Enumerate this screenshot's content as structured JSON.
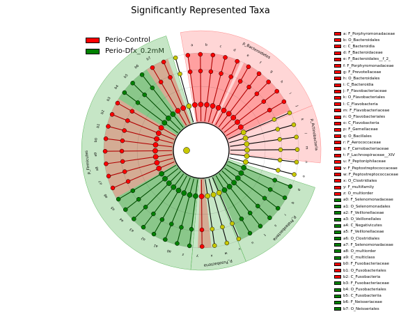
{
  "title": "Significantly Represented Taxa",
  "colors": {
    "control": "#ff0000",
    "dfx": "#008000",
    "control_shade": "#ff8a8a",
    "dfx_shade": "#5cb85c",
    "neutral_node": "#c8c800",
    "line": "#000000"
  },
  "legend": [
    {
      "label": "Perio-Control",
      "color": "#ff0000"
    },
    {
      "label": "Perio-Dfx_0.2mM",
      "color": "#008000"
    }
  ],
  "key": [
    {
      "label": "a: F_Porphyromonadaceae",
      "group": "control"
    },
    {
      "label": "b: O_Bacteroidales",
      "group": "control"
    },
    {
      "label": "c: C_Bacteroidia",
      "group": "control"
    },
    {
      "label": "d: F_Bacteroidaceae",
      "group": "control"
    },
    {
      "label": "e: F_Bacteroidales__f_2_",
      "group": "control"
    },
    {
      "label": "f: F_Porphyromonadaceae",
      "group": "control"
    },
    {
      "label": "g: F_Prevotellaceae",
      "group": "control"
    },
    {
      "label": "h: O_Bacteroidales",
      "group": "control"
    },
    {
      "label": "i: C_Bacteroidia",
      "group": "control"
    },
    {
      "label": "j: F_Flavobacteriaceae",
      "group": "control"
    },
    {
      "label": "k: O_Flavobacteriales",
      "group": "control"
    },
    {
      "label": "l: C_Flavobacteria",
      "group": "control"
    },
    {
      "label": "m: F_Flavobacteriaceae",
      "group": "control"
    },
    {
      "label": "n: O_Flavobacteriales",
      "group": "control"
    },
    {
      "label": "o: C_Flavobacteria",
      "group": "control"
    },
    {
      "label": "p: F_Gemellaceae",
      "group": "control"
    },
    {
      "label": "q: O_Bacillales",
      "group": "control"
    },
    {
      "label": "r: F_Aerococcaceae",
      "group": "control"
    },
    {
      "label": "s: F_Carnobacteriaceae",
      "group": "control"
    },
    {
      "label": "t: F_Lachnospiraceae__XIV",
      "group": "control"
    },
    {
      "label": "u: F_Peptoniphilaceae",
      "group": "control"
    },
    {
      "label": "v: F_Peptostreptococcaceae",
      "group": "control"
    },
    {
      "label": "w: F_Peptostreptococcaceae",
      "group": "control"
    },
    {
      "label": "x: O_Clostridiales",
      "group": "control"
    },
    {
      "label": "y: F_multifamily",
      "group": "control"
    },
    {
      "label": "z: O_multiorder",
      "group": "control"
    },
    {
      "label": "a0: F_Selenomonadaceae",
      "group": "dfx"
    },
    {
      "label": "a1: O_Selenomonadales",
      "group": "dfx"
    },
    {
      "label": "a2: F_Veillonellaceae",
      "group": "dfx"
    },
    {
      "label": "a3: O_Veillonellales",
      "group": "dfx"
    },
    {
      "label": "a4: C_Negativicutes",
      "group": "dfx"
    },
    {
      "label": "a5: F_Veillonellaceae",
      "group": "dfx"
    },
    {
      "label": "a6: O_Clostridiales",
      "group": "dfx"
    },
    {
      "label": "a7: F_Selenomonadaceae",
      "group": "dfx"
    },
    {
      "label": "a8: O_multiorder",
      "group": "dfx"
    },
    {
      "label": "a9: C_multiclass",
      "group": "dfx"
    },
    {
      "label": "b0: F_Fusobacteriaceae",
      "group": "control"
    },
    {
      "label": "b1: O_Fusobacteriales",
      "group": "control"
    },
    {
      "label": "b2: C_Fusobacteria",
      "group": "control"
    },
    {
      "label": "b3: F_Fusobacteriaceae",
      "group": "dfx"
    },
    {
      "label": "b4: O_Fusobacteriales",
      "group": "dfx"
    },
    {
      "label": "b5: C_Fusobacteriia",
      "group": "dfx"
    },
    {
      "label": "b6: F_Neisseriaceae",
      "group": "dfx"
    },
    {
      "label": "b7: O_Neisseriales",
      "group": "dfx"
    }
  ],
  "chart_data": {
    "type": "cladogram",
    "title": "Significantly Represented Taxa",
    "legend_placement": "top-left",
    "clades": [
      {
        "name": "p_Bacteroidetes",
        "enriched_in": "Perio-Control",
        "start_deg": -100,
        "end_deg": -22
      },
      {
        "name": "p_Actinobacteria",
        "enriched_in": "Perio-Control",
        "start_deg": -22,
        "end_deg": 6
      },
      {
        "name": "p_Proteobacteria",
        "enriched_in": "Perio-Dfx_0.2mM",
        "start_deg": 18,
        "end_deg": 68
      },
      {
        "name": "p_Fusobacteria",
        "enriched_in": "Perio-Dfx_0.2mM",
        "start_deg": 68,
        "end_deg": 95
      },
      {
        "name": "p_Firmicutes",
        "enriched_in": "Perio-Dfx_0.2mM",
        "start_deg": 95,
        "end_deg": 253
      }
    ],
    "control_sectors": [
      {
        "start_deg": -98,
        "end_deg": -66
      },
      {
        "start_deg": -64,
        "end_deg": -24
      },
      {
        "start_deg": 84,
        "end_deg": 92
      },
      {
        "start_deg": 151,
        "end_deg": 212
      },
      {
        "start_deg": 236,
        "end_deg": 250
      }
    ],
    "dfx_sectors": [
      {
        "start_deg": 22,
        "end_deg": 50
      },
      {
        "start_deg": 50,
        "end_deg": 66
      },
      {
        "start_deg": 96,
        "end_deg": 151
      },
      {
        "start_deg": 212,
        "end_deg": 236
      }
    ],
    "ring_labels": [
      "a",
      "b",
      "c",
      "d",
      "e",
      "f",
      "g",
      "h",
      "i",
      "j",
      "k",
      "l",
      "m",
      "n",
      "o",
      "p",
      "q",
      "r",
      "s",
      "t",
      "u",
      "v",
      "w",
      "x",
      "y",
      "z",
      "a0",
      "a1",
      "a2",
      "a3",
      "a4",
      "a5",
      "a6",
      "a7",
      "a8",
      "a9",
      "b0",
      "b1",
      "b2",
      "b3",
      "b4",
      "b5",
      "b6",
      "b7"
    ]
  }
}
